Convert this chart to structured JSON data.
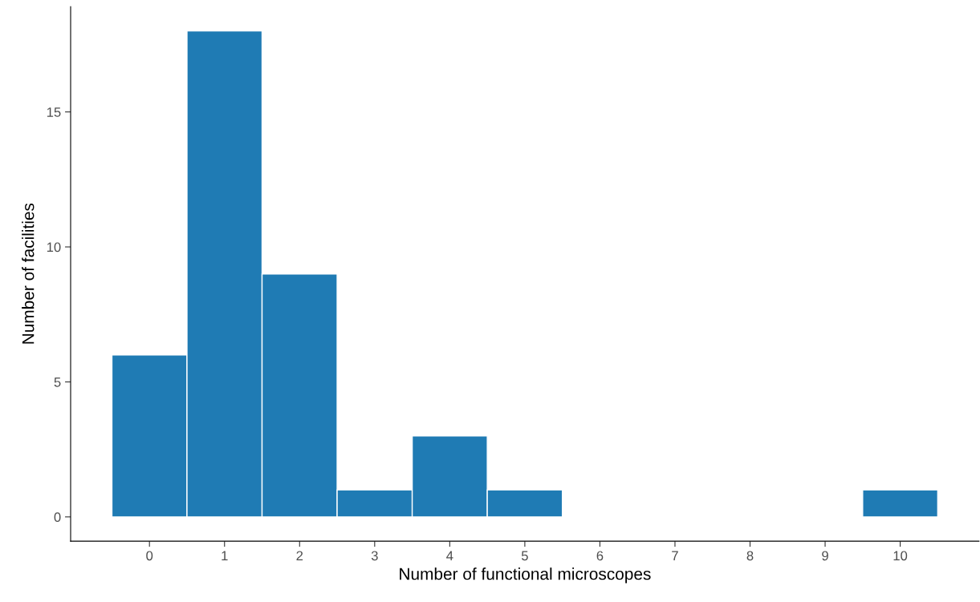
{
  "chart_data": {
    "type": "histogram",
    "xlabel": "Number of functional microscopes",
    "ylabel": "Number of facilities",
    "bins": [
      -0.5,
      0.5,
      1.5,
      2.5,
      3.5,
      4.5,
      5.5,
      6.5,
      7.5,
      8.5,
      9.5,
      10.5
    ],
    "values": [
      6,
      18,
      9,
      1,
      3,
      1,
      0,
      0,
      0,
      0,
      1
    ],
    "color": "#1f7bb4",
    "xlim": [
      -1.05,
      11.05
    ],
    "xticks": [
      0,
      1,
      2,
      3,
      4,
      5,
      6,
      7,
      8,
      9,
      10
    ],
    "ylim": [
      -0.9,
      18.9
    ],
    "yticks": [
      0,
      5,
      10,
      15
    ],
    "grid": false
  }
}
